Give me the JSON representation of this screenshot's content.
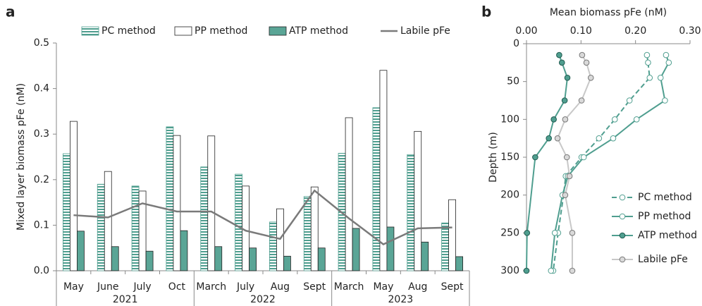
{
  "chart_data": [
    {
      "type": "bar",
      "label": "a",
      "ylabel": "Mixed layer biomass pFe (nM)",
      "categories": [
        "May",
        "June",
        "July",
        "Oct",
        "March",
        "July",
        "Aug",
        "Sept",
        "March",
        "May",
        "Aug",
        "Sept"
      ],
      "x_groups": [
        "2021",
        "2022",
        "2023"
      ],
      "ylim": [
        0,
        0.5
      ],
      "yticks": [
        {
          "value": 0,
          "label": "0.0"
        },
        0.1,
        0.2,
        0.3,
        0.4,
        0.5
      ],
      "grid": false,
      "legend": "top",
      "series": [
        {
          "name": "PC method",
          "type": "bar",
          "color": "#4f9e8f",
          "hatch": true,
          "values": [
            0.257,
            0.19,
            0.186,
            0.316,
            0.228,
            0.212,
            0.107,
            0.163,
            0.258,
            0.358,
            0.255,
            0.105
          ]
        },
        {
          "name": "PP method",
          "type": "bar",
          "color": "#ffffff",
          "values": [
            0.328,
            0.218,
            0.175,
            0.297,
            0.296,
            0.186,
            0.136,
            0.184,
            0.336,
            0.44,
            0.306,
            0.156
          ]
        },
        {
          "name": "ATP method",
          "type": "bar",
          "color": "#5aa596",
          "values": [
            0.087,
            0.053,
            0.043,
            0.088,
            0.053,
            0.05,
            0.032,
            0.05,
            0.093,
            0.096,
            0.063,
            0.031
          ]
        },
        {
          "name": "Labile pFe",
          "type": "line",
          "color": "#7a7a7a",
          "values": [
            0.122,
            0.117,
            0.148,
            0.13,
            0.13,
            0.088,
            0.07,
            0.176,
            0.115,
            0.058,
            0.093,
            0.095
          ]
        }
      ]
    },
    {
      "type": "profile",
      "label": "b",
      "xlabel": "Mean biomass pFe (nM)",
      "ylabel": "Depth (m)",
      "xlim": [
        0,
        0.3
      ],
      "xticks": [
        {
          "value": 0,
          "label": "0.00"
        },
        {
          "value": 0.1,
          "label": "0.10"
        },
        {
          "value": 0.2,
          "label": "0.20"
        },
        {
          "value": 0.3,
          "label": "0.30"
        }
      ],
      "ylim": [
        0,
        300
      ],
      "yticks": [
        0,
        50,
        100,
        150,
        200,
        250,
        300
      ],
      "y_inverted": true,
      "legend": "lower right",
      "series": [
        {
          "name": "PC method",
          "color": "#4f9e8f",
          "marker_fill": "#ffffff",
          "dashed": true,
          "x": [
            0.221,
            0.223,
            0.226,
            0.189,
            0.162,
            0.133,
            0.101,
            0.072,
            0.068,
            0.058,
            0.049
          ],
          "y": [
            15,
            25,
            45,
            75,
            100,
            125,
            150,
            175,
            200,
            250,
            300
          ]
        },
        {
          "name": "PP method",
          "color": "#4f9e8f",
          "marker_fill": "#ffffff",
          "dashed": false,
          "x": [
            0.256,
            0.261,
            0.246,
            0.254,
            0.202,
            0.159,
            0.105,
            0.076,
            0.066,
            0.052,
            0.045
          ],
          "y": [
            15,
            25,
            45,
            75,
            100,
            125,
            150,
            175,
            200,
            250,
            300
          ]
        },
        {
          "name": "ATP method",
          "color": "#4f9e8f",
          "marker_fill": "#4f9e8f",
          "dashed": false,
          "x": [
            0.06,
            0.065,
            0.075,
            0.07,
            0.05,
            0.041,
            0.016,
            0.001,
            0
          ],
          "y": [
            15,
            25,
            45,
            75,
            100,
            125,
            150,
            250,
            300
          ]
        },
        {
          "name": "Labile pFe",
          "color": "#c8c8c8",
          "marker_fill": "#d9d9d9",
          "dashed": false,
          "x": [
            0.102,
            0.11,
            0.118,
            0.101,
            0.071,
            0.057,
            0.074,
            0.079,
            0.071,
            0.084,
            0.084
          ],
          "y": [
            15,
            25,
            45,
            75,
            100,
            125,
            150,
            175,
            200,
            250,
            300
          ]
        }
      ]
    }
  ]
}
